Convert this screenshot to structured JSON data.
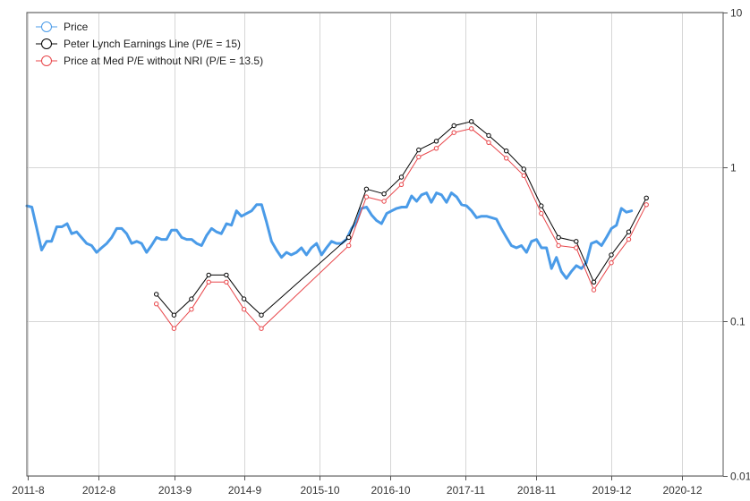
{
  "chart_data": {
    "type": "line",
    "title": "",
    "xlabel": "",
    "ylabel": "",
    "y_scale": "log",
    "ylim": [
      0.01,
      10
    ],
    "y_ticks": [
      {
        "value": 0.01,
        "label": "0.01"
      },
      {
        "value": 0.1,
        "label": "0.1"
      },
      {
        "value": 1,
        "label": "1"
      },
      {
        "value": 10,
        "label": "10"
      }
    ],
    "x_range": [
      "2011-07-25",
      "2021-07-06"
    ],
    "x_ticks": [
      {
        "date": "2011-08-01",
        "label": "2011-8"
      },
      {
        "date": "2012-08-01",
        "label": "2012-8"
      },
      {
        "date": "2013-09-01",
        "label": "2013-9"
      },
      {
        "date": "2014-09-01",
        "label": "2014-9"
      },
      {
        "date": "2015-10-01",
        "label": "2015-10"
      },
      {
        "date": "2016-10-01",
        "label": "2016-10"
      },
      {
        "date": "2017-11-01",
        "label": "2017-11"
      },
      {
        "date": "2018-11-01",
        "label": "2018-11"
      },
      {
        "date": "2019-12-01",
        "label": "2019-12"
      },
      {
        "date": "2020-12-01",
        "label": "2020-12"
      }
    ],
    "grid": true,
    "legend_position": "top-left",
    "series": [
      {
        "name": "Price",
        "color": "#4a9be8",
        "line_width": 3,
        "markers": false,
        "points": [
          [
            "2011-07-25",
            0.56
          ],
          [
            "2011-08-20",
            0.55
          ],
          [
            "2011-09-15",
            0.4
          ],
          [
            "2011-10-10",
            0.29
          ],
          [
            "2011-11-05",
            0.33
          ],
          [
            "2011-12-01",
            0.33
          ],
          [
            "2011-12-28",
            0.41
          ],
          [
            "2012-01-24",
            0.41
          ],
          [
            "2012-02-20",
            0.43
          ],
          [
            "2012-03-15",
            0.37
          ],
          [
            "2012-04-10",
            0.38
          ],
          [
            "2012-05-05",
            0.35
          ],
          [
            "2012-06-01",
            0.32
          ],
          [
            "2012-06-27",
            0.31
          ],
          [
            "2012-07-23",
            0.28
          ],
          [
            "2012-08-18",
            0.3
          ],
          [
            "2012-09-14",
            0.32
          ],
          [
            "2012-10-10",
            0.35
          ],
          [
            "2012-11-05",
            0.4
          ],
          [
            "2012-12-01",
            0.4
          ],
          [
            "2012-12-27",
            0.37
          ],
          [
            "2013-01-22",
            0.32
          ],
          [
            "2013-02-17",
            0.33
          ],
          [
            "2013-03-15",
            0.32
          ],
          [
            "2013-04-10",
            0.28
          ],
          [
            "2013-05-05",
            0.31
          ],
          [
            "2013-06-01",
            0.35
          ],
          [
            "2013-06-27",
            0.34
          ],
          [
            "2013-07-23",
            0.34
          ],
          [
            "2013-08-18",
            0.39
          ],
          [
            "2013-09-14",
            0.39
          ],
          [
            "2013-10-10",
            0.35
          ],
          [
            "2013-11-05",
            0.34
          ],
          [
            "2013-12-01",
            0.34
          ],
          [
            "2013-12-27",
            0.32
          ],
          [
            "2014-01-22",
            0.31
          ],
          [
            "2014-02-17",
            0.36
          ],
          [
            "2014-03-15",
            0.4
          ],
          [
            "2014-04-10",
            0.38
          ],
          [
            "2014-05-05",
            0.37
          ],
          [
            "2014-06-01",
            0.43
          ],
          [
            "2014-06-27",
            0.42
          ],
          [
            "2014-07-23",
            0.52
          ],
          [
            "2014-08-18",
            0.48
          ],
          [
            "2014-09-14",
            0.5
          ],
          [
            "2014-10-10",
            0.52
          ],
          [
            "2014-11-05",
            0.57
          ],
          [
            "2014-12-01",
            0.57
          ],
          [
            "2014-12-27",
            0.44
          ],
          [
            "2015-01-22",
            0.33
          ],
          [
            "2015-02-17",
            0.29
          ],
          [
            "2015-03-15",
            0.26
          ],
          [
            "2015-04-10",
            0.28
          ],
          [
            "2015-05-05",
            0.27
          ],
          [
            "2015-06-01",
            0.28
          ],
          [
            "2015-06-27",
            0.3
          ],
          [
            "2015-07-23",
            0.27
          ],
          [
            "2015-08-18",
            0.3
          ],
          [
            "2015-09-14",
            0.32
          ],
          [
            "2015-10-10",
            0.27
          ],
          [
            "2015-11-05",
            0.3
          ],
          [
            "2015-12-01",
            0.33
          ],
          [
            "2015-12-27",
            0.32
          ],
          [
            "2016-01-22",
            0.32
          ],
          [
            "2016-02-17",
            0.34
          ],
          [
            "2016-03-15",
            0.4
          ],
          [
            "2016-04-10",
            0.44
          ],
          [
            "2016-05-05",
            0.54
          ],
          [
            "2016-06-01",
            0.55
          ],
          [
            "2016-06-27",
            0.49
          ],
          [
            "2016-07-23",
            0.45
          ],
          [
            "2016-08-18",
            0.43
          ],
          [
            "2016-09-14",
            0.5
          ],
          [
            "2016-10-10",
            0.52
          ],
          [
            "2016-11-05",
            0.54
          ],
          [
            "2016-12-01",
            0.55
          ],
          [
            "2016-12-27",
            0.55
          ],
          [
            "2017-01-22",
            0.65
          ],
          [
            "2017-02-17",
            0.6
          ],
          [
            "2017-03-15",
            0.66
          ],
          [
            "2017-04-10",
            0.68
          ],
          [
            "2017-05-05",
            0.59
          ],
          [
            "2017-06-01",
            0.68
          ],
          [
            "2017-06-27",
            0.66
          ],
          [
            "2017-07-23",
            0.59
          ],
          [
            "2017-08-18",
            0.68
          ],
          [
            "2017-09-14",
            0.64
          ],
          [
            "2017-10-10",
            0.57
          ],
          [
            "2017-11-05",
            0.56
          ],
          [
            "2017-12-01",
            0.52
          ],
          [
            "2017-12-27",
            0.47
          ],
          [
            "2018-01-22",
            0.48
          ],
          [
            "2018-02-17",
            0.48
          ],
          [
            "2018-03-15",
            0.47
          ],
          [
            "2018-04-10",
            0.46
          ],
          [
            "2018-05-05",
            0.4
          ],
          [
            "2018-06-01",
            0.35
          ],
          [
            "2018-06-27",
            0.31
          ],
          [
            "2018-07-23",
            0.3
          ],
          [
            "2018-08-18",
            0.31
          ],
          [
            "2018-09-14",
            0.28
          ],
          [
            "2018-10-10",
            0.33
          ],
          [
            "2018-11-05",
            0.34
          ],
          [
            "2018-12-01",
            0.3
          ],
          [
            "2018-12-27",
            0.3
          ],
          [
            "2019-01-22",
            0.22
          ],
          [
            "2019-02-17",
            0.26
          ],
          [
            "2019-03-15",
            0.21
          ],
          [
            "2019-04-10",
            0.19
          ],
          [
            "2019-05-05",
            0.21
          ],
          [
            "2019-06-01",
            0.23
          ],
          [
            "2019-06-27",
            0.22
          ],
          [
            "2019-07-23",
            0.24
          ],
          [
            "2019-08-18",
            0.32
          ],
          [
            "2019-09-14",
            0.33
          ],
          [
            "2019-10-10",
            0.31
          ],
          [
            "2019-11-05",
            0.35
          ],
          [
            "2019-12-01",
            0.4
          ],
          [
            "2019-12-27",
            0.42
          ],
          [
            "2020-01-22",
            0.54
          ],
          [
            "2020-02-17",
            0.51
          ],
          [
            "2020-03-15",
            0.52
          ]
        ]
      },
      {
        "name": "Peter Lynch Earnings Line (P/E = 15)",
        "color": "#000000",
        "line_width": 1,
        "markers": true,
        "points": [
          [
            "2013-05-31",
            0.15
          ],
          [
            "2013-08-31",
            0.11
          ],
          [
            "2013-11-30",
            0.14
          ],
          [
            "2014-02-28",
            0.2
          ],
          [
            "2014-05-31",
            0.2
          ],
          [
            "2014-08-31",
            0.14
          ],
          [
            "2014-11-30",
            0.11
          ],
          [
            "2016-02-29",
            0.35
          ],
          [
            "2016-05-31",
            0.72
          ],
          [
            "2016-08-31",
            0.67
          ],
          [
            "2016-11-30",
            0.86
          ],
          [
            "2017-02-28",
            1.29
          ],
          [
            "2017-05-31",
            1.47
          ],
          [
            "2017-08-31",
            1.85
          ],
          [
            "2017-11-30",
            1.97
          ],
          [
            "2018-02-28",
            1.6
          ],
          [
            "2018-05-31",
            1.27
          ],
          [
            "2018-08-31",
            0.97
          ],
          [
            "2018-11-30",
            0.56
          ],
          [
            "2019-02-28",
            0.35
          ],
          [
            "2019-05-31",
            0.33
          ],
          [
            "2019-08-31",
            0.18
          ],
          [
            "2019-11-30",
            0.27
          ],
          [
            "2020-02-29",
            0.38
          ],
          [
            "2020-05-31",
            0.63
          ]
        ]
      },
      {
        "name": "Price at Med P/E without NRI (P/E = 13.5)",
        "color": "#e8464a",
        "line_width": 1,
        "markers": true,
        "points": [
          [
            "2013-05-31",
            0.13
          ],
          [
            "2013-08-31",
            0.09
          ],
          [
            "2013-11-30",
            0.12
          ],
          [
            "2014-02-28",
            0.18
          ],
          [
            "2014-05-31",
            0.18
          ],
          [
            "2014-08-31",
            0.12
          ],
          [
            "2014-11-30",
            0.09
          ],
          [
            "2016-02-29",
            0.31
          ],
          [
            "2016-05-31",
            0.64
          ],
          [
            "2016-08-31",
            0.6
          ],
          [
            "2016-11-30",
            0.77
          ],
          [
            "2017-02-28",
            1.16
          ],
          [
            "2017-05-31",
            1.32
          ],
          [
            "2017-08-31",
            1.67
          ],
          [
            "2017-11-30",
            1.77
          ],
          [
            "2018-02-28",
            1.44
          ],
          [
            "2018-05-31",
            1.14
          ],
          [
            "2018-08-31",
            0.88
          ],
          [
            "2018-11-30",
            0.5
          ],
          [
            "2019-02-28",
            0.31
          ],
          [
            "2019-05-31",
            0.3
          ],
          [
            "2019-08-31",
            0.16
          ],
          [
            "2019-11-30",
            0.24
          ],
          [
            "2020-02-29",
            0.34
          ],
          [
            "2020-05-31",
            0.57
          ]
        ]
      }
    ]
  }
}
